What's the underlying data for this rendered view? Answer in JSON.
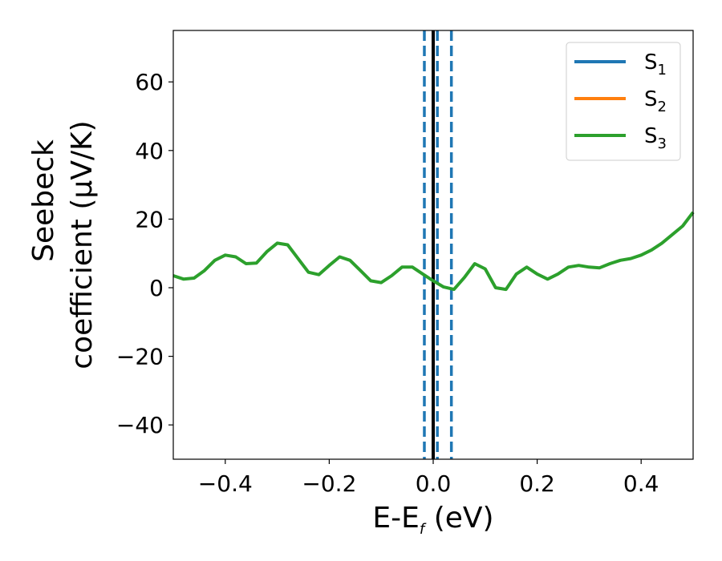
{
  "chart_data": {
    "type": "line",
    "xlabel": {
      "main": "E-E",
      "sub": "f",
      "tail": " (eV)"
    },
    "ylabel_lines": [
      "Seebeck",
      "coefficient  (μV/K)"
    ],
    "xlim": [
      -0.5,
      0.5
    ],
    "ylim": [
      -50,
      75
    ],
    "x_ticks": [
      -0.4,
      -0.2,
      0.0,
      0.2,
      0.4
    ],
    "x_tick_labels": [
      "−0.4",
      "−0.2",
      "0.0",
      "0.2",
      "0.4"
    ],
    "y_ticks": [
      -40,
      -20,
      0,
      20,
      40,
      60
    ],
    "y_tick_labels": [
      "−40",
      "−20",
      "0",
      "20",
      "40",
      "60"
    ],
    "grid": false,
    "legend_position": "upper-right",
    "series": [
      {
        "name": "S",
        "sub": "1",
        "color": "#1f77b4"
      },
      {
        "name": "S",
        "sub": "2",
        "color": "#ff7f0e"
      },
      {
        "name": "S",
        "sub": "3",
        "color": "#2ca02c",
        "x": [
          -0.5,
          -0.48,
          -0.46,
          -0.44,
          -0.42,
          -0.4,
          -0.38,
          -0.36,
          -0.34,
          -0.32,
          -0.3,
          -0.28,
          -0.26,
          -0.24,
          -0.22,
          -0.2,
          -0.18,
          -0.16,
          -0.14,
          -0.12,
          -0.1,
          -0.08,
          -0.06,
          -0.04,
          -0.02,
          0.0,
          0.02,
          0.04,
          0.06,
          0.08,
          0.1,
          0.12,
          0.14,
          0.16,
          0.18,
          0.2,
          0.22,
          0.24,
          0.26,
          0.28,
          0.3,
          0.32,
          0.34,
          0.36,
          0.38,
          0.4,
          0.42,
          0.44,
          0.46,
          0.48,
          0.5
        ],
        "y": [
          3.5,
          2.5,
          2.8,
          5.0,
          8.0,
          9.5,
          9.0,
          7.0,
          7.2,
          10.5,
          13.0,
          12.5,
          8.5,
          4.5,
          3.8,
          6.5,
          9.0,
          8.0,
          5.0,
          2.0,
          1.5,
          3.5,
          6.0,
          6.0,
          4.0,
          2.0,
          0.2,
          -0.5,
          3.0,
          7.0,
          5.5,
          0.0,
          -0.5,
          4.0,
          6.0,
          4.0,
          2.5,
          4.0,
          6.0,
          6.5,
          6.0,
          5.8,
          7.0,
          8.0,
          8.5,
          9.5,
          11.0,
          13.0,
          15.5,
          18.0,
          22.0
        ]
      }
    ],
    "vlines": [
      {
        "x": 0.0,
        "style": "solid",
        "color": "#000000"
      },
      {
        "x": -0.017,
        "style": "dashed",
        "color": "#1f77b4"
      },
      {
        "x": 0.008,
        "style": "dashed",
        "color": "#1f77b4"
      },
      {
        "x": 0.035,
        "style": "dashed",
        "color": "#1f77b4"
      }
    ]
  }
}
